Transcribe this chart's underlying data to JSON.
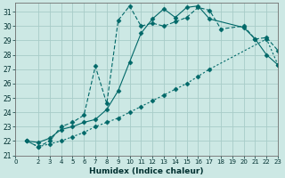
{
  "xlabel": "Humidex (Indice chaleur)",
  "bg_color": "#cce8e4",
  "grid_color": "#a8ccc8",
  "line_color": "#006868",
  "xlim": [
    0,
    23
  ],
  "ylim": [
    21,
    31.6
  ],
  "xticks": [
    0,
    2,
    3,
    4,
    5,
    6,
    7,
    8,
    9,
    10,
    11,
    12,
    13,
    14,
    15,
    16,
    17,
    18,
    19,
    20,
    21,
    22,
    23
  ],
  "yticks": [
    21,
    22,
    23,
    24,
    25,
    26,
    27,
    28,
    29,
    30,
    31
  ],
  "line1_x": [
    1,
    2,
    3,
    4,
    5,
    6,
    7,
    8,
    9,
    10,
    11,
    12,
    13,
    14,
    15,
    16,
    17,
    22,
    23
  ],
  "line1_y": [
    22,
    21.6,
    21.8,
    22.0,
    22.3,
    22.6,
    23.0,
    23.3,
    23.6,
    24.0,
    24.4,
    24.8,
    25.2,
    25.6,
    26.0,
    26.5,
    27.0,
    29.1,
    27.3
  ],
  "line2_x": [
    1,
    2,
    3,
    4,
    5,
    6,
    7,
    8,
    9,
    10,
    11,
    12,
    13,
    14,
    15,
    16,
    17,
    20,
    21,
    22,
    23
  ],
  "line2_y": [
    22,
    21.9,
    22.2,
    22.8,
    23.0,
    23.3,
    23.5,
    24.2,
    25.5,
    27.5,
    29.5,
    30.5,
    31.2,
    30.6,
    31.3,
    31.4,
    30.5,
    29.9,
    29.1,
    28.0,
    27.3
  ],
  "line3_x": [
    1,
    2,
    3,
    4,
    5,
    6,
    7,
    8,
    9,
    10,
    11,
    12,
    13,
    14,
    15,
    16,
    17,
    18,
    20,
    21,
    22,
    23
  ],
  "line3_y": [
    22,
    21.6,
    22.0,
    23.0,
    23.3,
    23.8,
    27.2,
    24.6,
    30.4,
    31.4,
    30.0,
    30.2,
    30.0,
    30.3,
    30.6,
    31.3,
    31.1,
    29.8,
    30.0,
    29.1,
    29.2,
    28.3
  ]
}
